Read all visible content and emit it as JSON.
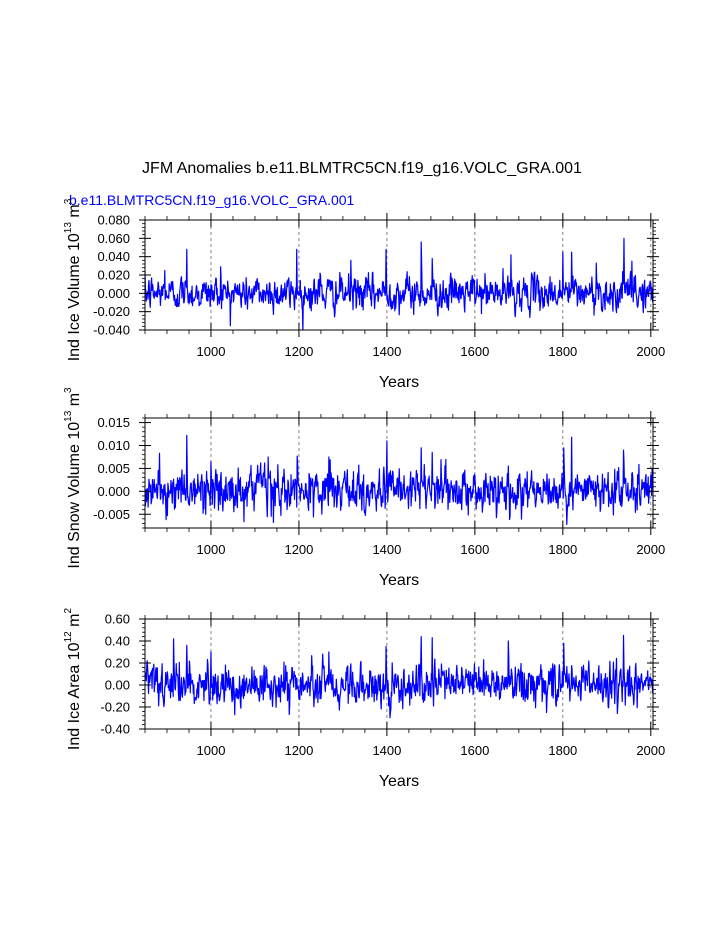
{
  "figure": {
    "title": "JFM Anomalies b.e11.BLMTRC5CN.f19_g16.VOLC_GRA.001",
    "subtitle": "b.e11.BLMTRC5CN.f19_g16.VOLC_GRA.001",
    "series_color": "#0000ff"
  },
  "chart_data": [
    {
      "type": "line",
      "title": "",
      "xlabel": "Years",
      "ylabel": "Ind Ice Volume 10",
      "ylabel_exp": "13",
      "ylabel_unit": " m",
      "ylabel_unit_exp": "3",
      "xlim": [
        850,
        2005
      ],
      "ylim": [
        -0.04,
        0.08
      ],
      "xticks": [
        1000,
        1200,
        1400,
        1600,
        1800,
        2000
      ],
      "xtick_labels": [
        "1000",
        "1200",
        "1400",
        "1600",
        "1800",
        "2000"
      ],
      "yticks": [
        -0.04,
        -0.02,
        0.0,
        0.02,
        0.04,
        0.06,
        0.08
      ],
      "ytick_labels": [
        "-0.040",
        "-0.020",
        "0.000",
        "0.020",
        "0.040",
        "0.060",
        "0.080"
      ],
      "grid": "vertical dashed at major x ticks",
      "series": [
        {
          "name": "Ind Ice Volume",
          "start_year": 850,
          "end_year": 2005,
          "noise_sd": 0.0085,
          "bias": 0.0,
          "peaks": [
            [
              895,
              0.025
            ],
            [
              945,
              0.048
            ],
            [
              1022,
              0.029
            ],
            [
              1195,
              0.048
            ],
            [
              1248,
              0.022
            ],
            [
              1318,
              0.036
            ],
            [
              1398,
              0.048
            ],
            [
              1478,
              0.056
            ],
            [
              1503,
              0.038
            ],
            [
              1682,
              0.042
            ],
            [
              1800,
              0.045
            ],
            [
              1820,
              0.045
            ],
            [
              1876,
              0.033
            ],
            [
              1939,
              0.06
            ],
            [
              1957,
              0.035
            ]
          ]
        }
      ]
    },
    {
      "type": "line",
      "title": "",
      "xlabel": "Years",
      "ylabel": "Ind Snow Volume 10",
      "ylabel_exp": "13",
      "ylabel_unit": " m",
      "ylabel_unit_exp": "3",
      "xlim": [
        850,
        2005
      ],
      "ylim": [
        -0.008,
        0.016
      ],
      "xticks": [
        1000,
        1200,
        1400,
        1600,
        1800,
        2000
      ],
      "xtick_labels": [
        "1000",
        "1200",
        "1400",
        "1600",
        "1800",
        "2000"
      ],
      "yticks": [
        -0.005,
        0.0,
        0.005,
        0.01,
        0.015
      ],
      "ytick_labels": [
        "-0.005",
        "0.000",
        "0.005",
        "0.010",
        "0.015"
      ],
      "grid": "vertical dashed at major x ticks",
      "series": [
        {
          "name": "Ind Snow Volume",
          "start_year": 850,
          "end_year": 2005,
          "noise_sd": 0.0022,
          "bias": 0.0,
          "peaks": [
            [
              945,
              0.0122
            ],
            [
              1000,
              0.0065
            ],
            [
              1130,
              0.0075
            ],
            [
              1268,
              0.0075
            ],
            [
              1400,
              0.011
            ],
            [
              1478,
              0.0095
            ],
            [
              1503,
              0.0085
            ],
            [
              1802,
              0.0095
            ],
            [
              1820,
              0.0118
            ],
            [
              1938,
              0.009
            ]
          ]
        }
      ]
    },
    {
      "type": "line",
      "title": "",
      "xlabel": "Years",
      "ylabel": "Ind Ice Area 10",
      "ylabel_exp": "12",
      "ylabel_unit": " m",
      "ylabel_unit_exp": "2",
      "xlim": [
        850,
        2005
      ],
      "ylim": [
        -0.4,
        0.6
      ],
      "xticks": [
        1000,
        1200,
        1400,
        1600,
        1800,
        2000
      ],
      "xtick_labels": [
        "1000",
        "1200",
        "1400",
        "1600",
        "1800",
        "2000"
      ],
      "yticks": [
        -0.4,
        -0.2,
        0.0,
        0.2,
        0.4,
        0.6
      ],
      "ytick_labels": [
        "-0.40",
        "-0.20",
        "0.00",
        "0.20",
        "0.40",
        "0.60"
      ],
      "grid": "vertical dashed at major x ticks",
      "series": [
        {
          "name": "Ind Ice Area",
          "start_year": 850,
          "end_year": 2005,
          "noise_sd": 0.085,
          "bias": 0.0,
          "peaks": [
            [
              915,
              0.42
            ],
            [
              945,
              0.36
            ],
            [
              1000,
              0.3
            ],
            [
              1268,
              0.3
            ],
            [
              1398,
              0.35
            ],
            [
              1478,
              0.44
            ],
            [
              1503,
              0.43
            ],
            [
              1676,
              0.4
            ],
            [
              1802,
              0.38
            ],
            [
              1938,
              0.45
            ]
          ]
        }
      ]
    }
  ]
}
